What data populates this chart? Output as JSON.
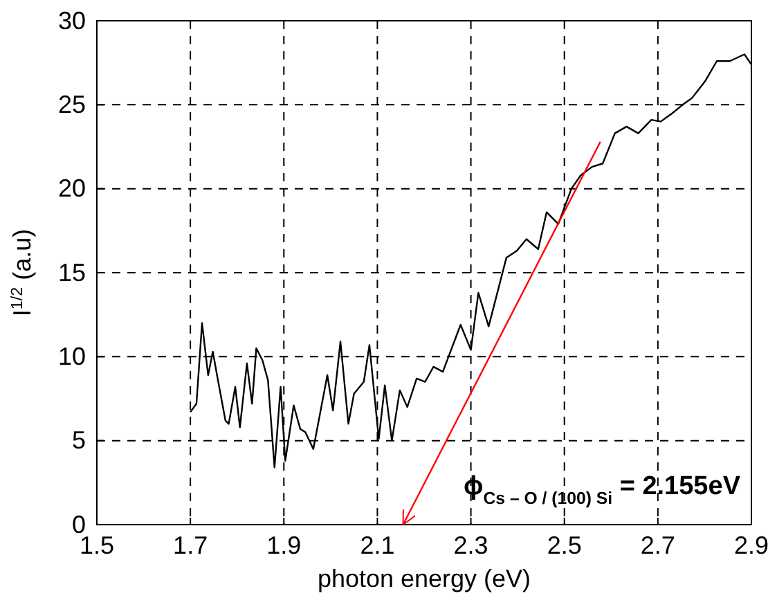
{
  "chart_data": {
    "type": "line",
    "xlabel": "photon energy (eV)",
    "ylabel": "I$^{1/2}$ (a.u)",
    "xlim": [
      1.5,
      2.9
    ],
    "xticks": [
      1.5,
      1.7,
      1.9,
      2.1,
      2.3,
      2.5,
      2.7,
      2.9
    ],
    "ylim": [
      0,
      30
    ],
    "yticks": [
      0,
      5,
      10,
      15,
      20,
      25,
      30
    ],
    "grid": true,
    "line_style": "dashed",
    "series": [
      {
        "color": "#000000",
        "x": [
          1.7,
          1.713,
          1.725,
          1.738,
          1.748,
          1.757,
          1.775,
          1.782,
          1.796,
          1.806,
          1.821,
          1.832,
          1.841,
          1.854,
          1.866,
          1.88,
          1.893,
          1.903,
          1.921,
          1.935,
          1.946,
          1.963,
          1.993,
          2.005,
          2.021,
          2.038,
          2.05,
          2.071,
          2.083,
          2.103,
          2.116,
          2.131,
          2.148,
          2.164,
          2.184,
          2.202,
          2.22,
          2.24,
          2.278,
          2.3,
          2.316,
          2.338,
          2.376,
          2.398,
          2.419,
          2.444,
          2.462,
          2.487,
          2.515,
          2.535,
          2.559,
          2.582,
          2.608,
          2.633,
          2.658,
          2.686,
          2.706,
          2.731,
          2.753,
          2.773,
          2.801,
          2.826,
          2.854,
          2.885,
          2.9
        ],
        "values": [
          6.7,
          7.2,
          12.0,
          8.9,
          10.3,
          8.9,
          6.2,
          6.0,
          8.2,
          5.8,
          9.6,
          7.2,
          10.5,
          9.8,
          8.6,
          3.4,
          8.2,
          3.8,
          7.1,
          5.7,
          5.5,
          4.5,
          8.9,
          6.8,
          10.9,
          6.0,
          7.8,
          8.5,
          10.7,
          5.1,
          8.3,
          5.0,
          8.0,
          7.0,
          8.7,
          8.5,
          9.4,
          9.1,
          11.9,
          10.4,
          13.8,
          11.8,
          15.9,
          16.3,
          17.0,
          16.4,
          18.6,
          17.9,
          20.0,
          20.8,
          21.3,
          21.5,
          23.3,
          23.7,
          23.3,
          24.1,
          24.0,
          24.5,
          25.0,
          25.4,
          26.4,
          27.6,
          27.6,
          28.0,
          27.4
        ],
        "line_style": "solid"
      },
      {
        "color": "#ff0000",
        "x": [
          2.577,
          2.155
        ],
        "values": [
          22.8,
          0
        ],
        "line_style": "solid"
      }
    ],
    "annotations": [
      "ϕ$_{Cs – O / (100) Si}$ = 2.155eV"
    ]
  }
}
